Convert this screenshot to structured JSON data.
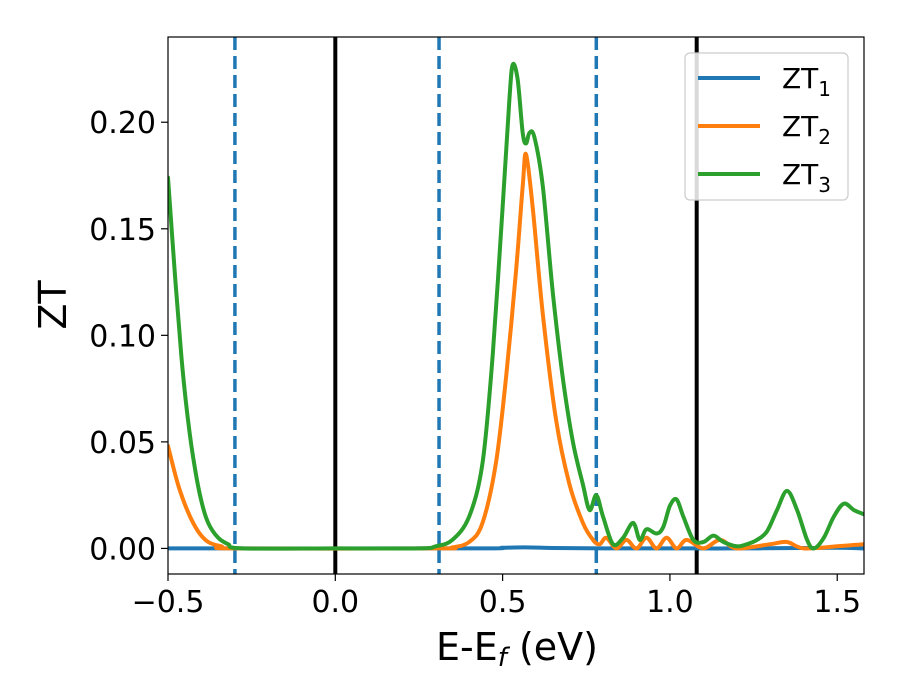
{
  "chart_data": {
    "type": "line",
    "xlabel_base": "E-E",
    "xlabel_sub": "f",
    "xlabel_unit": " (eV)",
    "ylabel": "ZT",
    "xlim": [
      -0.5,
      1.58
    ],
    "ylim": [
      -0.012,
      0.24
    ],
    "xticks": [
      {
        "value": -0.5,
        "label": "−0.5"
      },
      {
        "value": 0.0,
        "label": "0.0"
      },
      {
        "value": 0.5,
        "label": "0.5"
      },
      {
        "value": 1.0,
        "label": "1.0"
      },
      {
        "value": 1.5,
        "label": "1.5"
      }
    ],
    "yticks": [
      {
        "value": 0.0,
        "label": "0.00"
      },
      {
        "value": 0.05,
        "label": "0.05"
      },
      {
        "value": 0.1,
        "label": "0.10"
      },
      {
        "value": 0.15,
        "label": "0.15"
      },
      {
        "value": 0.2,
        "label": "0.20"
      }
    ],
    "vlines": [
      {
        "x": -0.3,
        "style": "dashed",
        "color": "#1f77b4"
      },
      {
        "x": 0.0,
        "style": "solid",
        "color": "#000000"
      },
      {
        "x": 0.31,
        "style": "dashed",
        "color": "#1f77b4"
      },
      {
        "x": 0.78,
        "style": "dashed",
        "color": "#1f77b4"
      },
      {
        "x": 1.08,
        "style": "solid",
        "color": "#000000"
      }
    ],
    "legend_position": "top-right",
    "series": [
      {
        "name": "ZT",
        "sub": "1",
        "color": "#1f77b4",
        "points": [
          [
            -0.5,
            0.0
          ],
          [
            0.4,
            0.0
          ],
          [
            0.5,
            0.0003
          ],
          [
            0.57,
            0.0005
          ],
          [
            0.65,
            0.0002
          ],
          [
            0.8,
            0.0
          ],
          [
            1.0,
            0.0
          ],
          [
            1.2,
            0.0
          ],
          [
            1.4,
            0.0002
          ],
          [
            1.5,
            0.0003
          ],
          [
            1.58,
            0.0
          ]
        ]
      },
      {
        "name": "ZT",
        "sub": "2",
        "color": "#ff7f0e",
        "points": [
          [
            -0.5,
            0.048
          ],
          [
            -0.47,
            0.03
          ],
          [
            -0.44,
            0.017
          ],
          [
            -0.41,
            0.008
          ],
          [
            -0.38,
            0.003
          ],
          [
            -0.34,
            0.001
          ],
          [
            -0.3,
            0.0
          ],
          [
            0.3,
            0.0
          ],
          [
            0.35,
            0.0005
          ],
          [
            0.4,
            0.003
          ],
          [
            0.44,
            0.012
          ],
          [
            0.48,
            0.04
          ],
          [
            0.51,
            0.08
          ],
          [
            0.54,
            0.13
          ],
          [
            0.56,
            0.17
          ],
          [
            0.57,
            0.185
          ],
          [
            0.59,
            0.16
          ],
          [
            0.62,
            0.11
          ],
          [
            0.66,
            0.06
          ],
          [
            0.7,
            0.03
          ],
          [
            0.74,
            0.012
          ],
          [
            0.77,
            0.004
          ],
          [
            0.79,
            0.002
          ],
          [
            0.81,
            0.005
          ],
          [
            0.84,
            0.0
          ],
          [
            0.87,
            0.004
          ],
          [
            0.9,
            0.0
          ],
          [
            0.93,
            0.005
          ],
          [
            0.96,
            0.0
          ],
          [
            0.99,
            0.005
          ],
          [
            1.02,
            0.0
          ],
          [
            1.05,
            0.004
          ],
          [
            1.1,
            0.0
          ],
          [
            1.15,
            0.004
          ],
          [
            1.2,
            0.0
          ],
          [
            1.3,
            0.002
          ],
          [
            1.35,
            0.003
          ],
          [
            1.4,
            0.0
          ],
          [
            1.5,
            0.001
          ],
          [
            1.58,
            0.002
          ]
        ]
      },
      {
        "name": "ZT",
        "sub": "3",
        "color": "#2ca02c",
        "points": [
          [
            -0.5,
            0.174
          ],
          [
            -0.48,
            0.13
          ],
          [
            -0.46,
            0.09
          ],
          [
            -0.44,
            0.06
          ],
          [
            -0.42,
            0.038
          ],
          [
            -0.4,
            0.022
          ],
          [
            -0.38,
            0.012
          ],
          [
            -0.35,
            0.005
          ],
          [
            -0.32,
            0.002
          ],
          [
            -0.28,
            0.0
          ],
          [
            0.0,
            0.0
          ],
          [
            0.25,
            0.0
          ],
          [
            0.3,
            0.001
          ],
          [
            0.35,
            0.004
          ],
          [
            0.4,
            0.015
          ],
          [
            0.44,
            0.04
          ],
          [
            0.47,
            0.09
          ],
          [
            0.5,
            0.16
          ],
          [
            0.52,
            0.21
          ],
          [
            0.53,
            0.227
          ],
          [
            0.545,
            0.22
          ],
          [
            0.56,
            0.195
          ],
          [
            0.57,
            0.19
          ],
          [
            0.58,
            0.195
          ],
          [
            0.595,
            0.193
          ],
          [
            0.62,
            0.17
          ],
          [
            0.65,
            0.12
          ],
          [
            0.68,
            0.08
          ],
          [
            0.71,
            0.05
          ],
          [
            0.74,
            0.03
          ],
          [
            0.76,
            0.018
          ],
          [
            0.78,
            0.025
          ],
          [
            0.8,
            0.015
          ],
          [
            0.83,
            0.002
          ],
          [
            0.86,
            0.005
          ],
          [
            0.89,
            0.012
          ],
          [
            0.91,
            0.004
          ],
          [
            0.93,
            0.009
          ],
          [
            0.96,
            0.007
          ],
          [
            0.98,
            0.01
          ],
          [
            1.0,
            0.02
          ],
          [
            1.02,
            0.023
          ],
          [
            1.04,
            0.015
          ],
          [
            1.07,
            0.004
          ],
          [
            1.1,
            0.003
          ],
          [
            1.13,
            0.006
          ],
          [
            1.16,
            0.003
          ],
          [
            1.2,
            0.001
          ],
          [
            1.23,
            0.002
          ],
          [
            1.26,
            0.004
          ],
          [
            1.29,
            0.008
          ],
          [
            1.32,
            0.018
          ],
          [
            1.35,
            0.027
          ],
          [
            1.38,
            0.018
          ],
          [
            1.41,
            0.004
          ],
          [
            1.43,
            0.0
          ],
          [
            1.46,
            0.005
          ],
          [
            1.49,
            0.015
          ],
          [
            1.52,
            0.021
          ],
          [
            1.55,
            0.018
          ],
          [
            1.58,
            0.016
          ]
        ]
      }
    ]
  }
}
